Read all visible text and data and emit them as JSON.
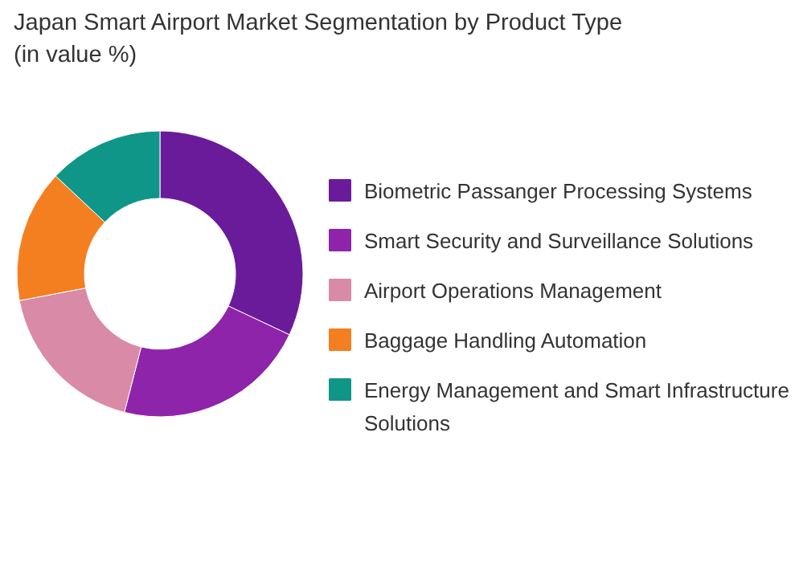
{
  "chart_data": {
    "type": "donut",
    "title": "Japan Smart Airport Market Segmentation by Product Type\n(in value %)",
    "legend": "right",
    "categories": [
      "Biometric Passanger Processing Systems",
      "Smart Security and Surveillance Solutions",
      "Airport Operations Management",
      "Baggage Handling Automation",
      "Energy Management and Smart Infrastructure Solutions"
    ],
    "values": [
      32,
      22,
      18,
      15,
      13
    ],
    "colors": [
      "#6a1b9a",
      "#8e24aa",
      "#d98aa6",
      "#f47f20",
      "#0f9688"
    ]
  }
}
